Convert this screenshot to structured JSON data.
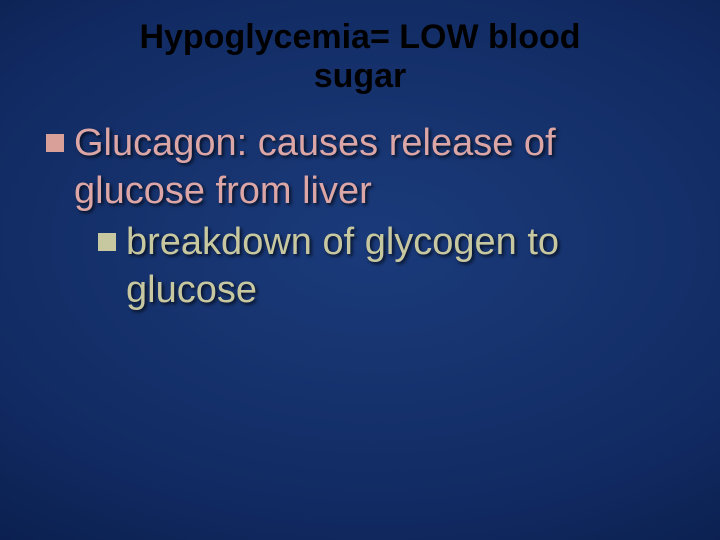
{
  "slide": {
    "title_line1": "Hypoglycemia= LOW blood",
    "title_line2": "sugar",
    "title_fontsize": 34,
    "title_color": "#000000",
    "background_gradient_center": "#1a3a7a",
    "background_gradient_edge": "#061640",
    "bullets": {
      "level1": {
        "text": "Glucagon: causes release of glucose from liver",
        "fontsize": 38,
        "color": "#dca6a6",
        "bullet_color": "#d8a098",
        "bullet_size": 18
      },
      "level2": {
        "text": "breakdown of glycogen to glucose",
        "fontsize": 38,
        "color": "#c8c8a0",
        "bullet_color": "#c8c8a0",
        "bullet_size": 18
      }
    }
  }
}
